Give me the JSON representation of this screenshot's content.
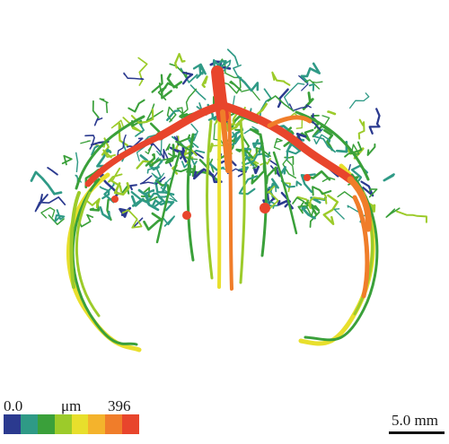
{
  "image": {
    "subject": "3D vessel thickness rendering",
    "palette": {
      "navy": "#2b3a8f",
      "teal": "#2f9a86",
      "green": "#3aa03a",
      "lime": "#9ccb2a",
      "yellow": "#e8df2c",
      "gold": "#f4b32c",
      "orange": "#f07d2a",
      "red": "#e8452c"
    }
  },
  "legend": {
    "min_label": "0.0",
    "unit_label": "μm",
    "max_label": "396",
    "colors": [
      "#2b3a8f",
      "#2f9a86",
      "#3aa03a",
      "#9ccb2a",
      "#e8df2c",
      "#f4b32c",
      "#f07d2a",
      "#e8452c"
    ]
  },
  "scale_bar": {
    "label": "5.0 mm"
  }
}
